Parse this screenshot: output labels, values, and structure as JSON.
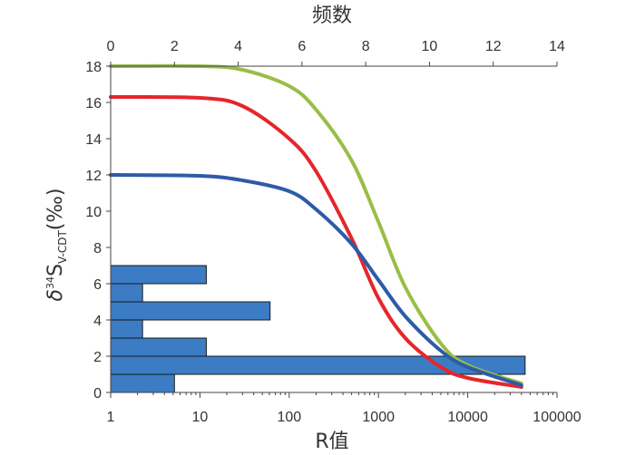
{
  "chart_data": {
    "type": "line",
    "top_axis": {
      "label": "频数",
      "ticks": [
        "0",
        "2",
        "4",
        "6",
        "8",
        "10",
        "12",
        "14"
      ],
      "range": [
        0,
        14
      ]
    },
    "bottom_axis": {
      "label": "R值",
      "scale": "log",
      "ticks": [
        "1",
        "10",
        "100",
        "1000",
        "10000",
        "100000"
      ],
      "range": [
        1,
        100000
      ]
    },
    "left_axis": {
      "label_parts": {
        "delta": "δ",
        "sup": "34",
        "S": "S",
        "sub": "V-CDT",
        "unit": "(‰)"
      },
      "ticks": [
        "0",
        "2",
        "4",
        "6",
        "8",
        "10",
        "12",
        "14",
        "16",
        "18"
      ],
      "range": [
        0,
        18
      ]
    },
    "grid": false,
    "histogram": {
      "color": "#3B7CC4",
      "bin_width": 1,
      "bins": [
        {
          "y_from": 0,
          "y_to": 1,
          "count": 2
        },
        {
          "y_from": 1,
          "y_to": 2,
          "count": 13
        },
        {
          "y_from": 2,
          "y_to": 3,
          "count": 3
        },
        {
          "y_from": 3,
          "y_to": 4,
          "count": 1
        },
        {
          "y_from": 4,
          "y_to": 5,
          "count": 5
        },
        {
          "y_from": 5,
          "y_to": 6,
          "count": 1
        },
        {
          "y_from": 6,
          "y_to": 7,
          "count": 3
        }
      ]
    },
    "series": [
      {
        "color": "#99BE47",
        "points": [
          [
            1,
            18.0
          ],
          [
            10,
            18.0
          ],
          [
            30,
            17.8
          ],
          [
            100,
            16.9
          ],
          [
            200,
            15.6
          ],
          [
            500,
            12.8
          ],
          [
            1000,
            9.4
          ],
          [
            2000,
            5.8
          ],
          [
            5000,
            2.7
          ],
          [
            10000,
            1.5
          ],
          [
            40000,
            0.5
          ]
        ]
      },
      {
        "color": "#E5262A",
        "points": [
          [
            1,
            16.3
          ],
          [
            10,
            16.25
          ],
          [
            30,
            15.8
          ],
          [
            100,
            14.0
          ],
          [
            200,
            12.2
          ],
          [
            500,
            8.5
          ],
          [
            1000,
            5.2
          ],
          [
            2000,
            3.0
          ],
          [
            5000,
            1.4
          ],
          [
            10000,
            0.8
          ],
          [
            40000,
            0.3
          ]
        ]
      },
      {
        "color": "#2E5BA8",
        "points": [
          [
            1,
            12.0
          ],
          [
            10,
            11.95
          ],
          [
            30,
            11.7
          ],
          [
            100,
            11.1
          ],
          [
            200,
            10.1
          ],
          [
            500,
            8.2
          ],
          [
            1000,
            6.2
          ],
          [
            2000,
            4.2
          ],
          [
            5000,
            2.3
          ],
          [
            10000,
            1.4
          ],
          [
            40000,
            0.4
          ]
        ]
      }
    ]
  }
}
